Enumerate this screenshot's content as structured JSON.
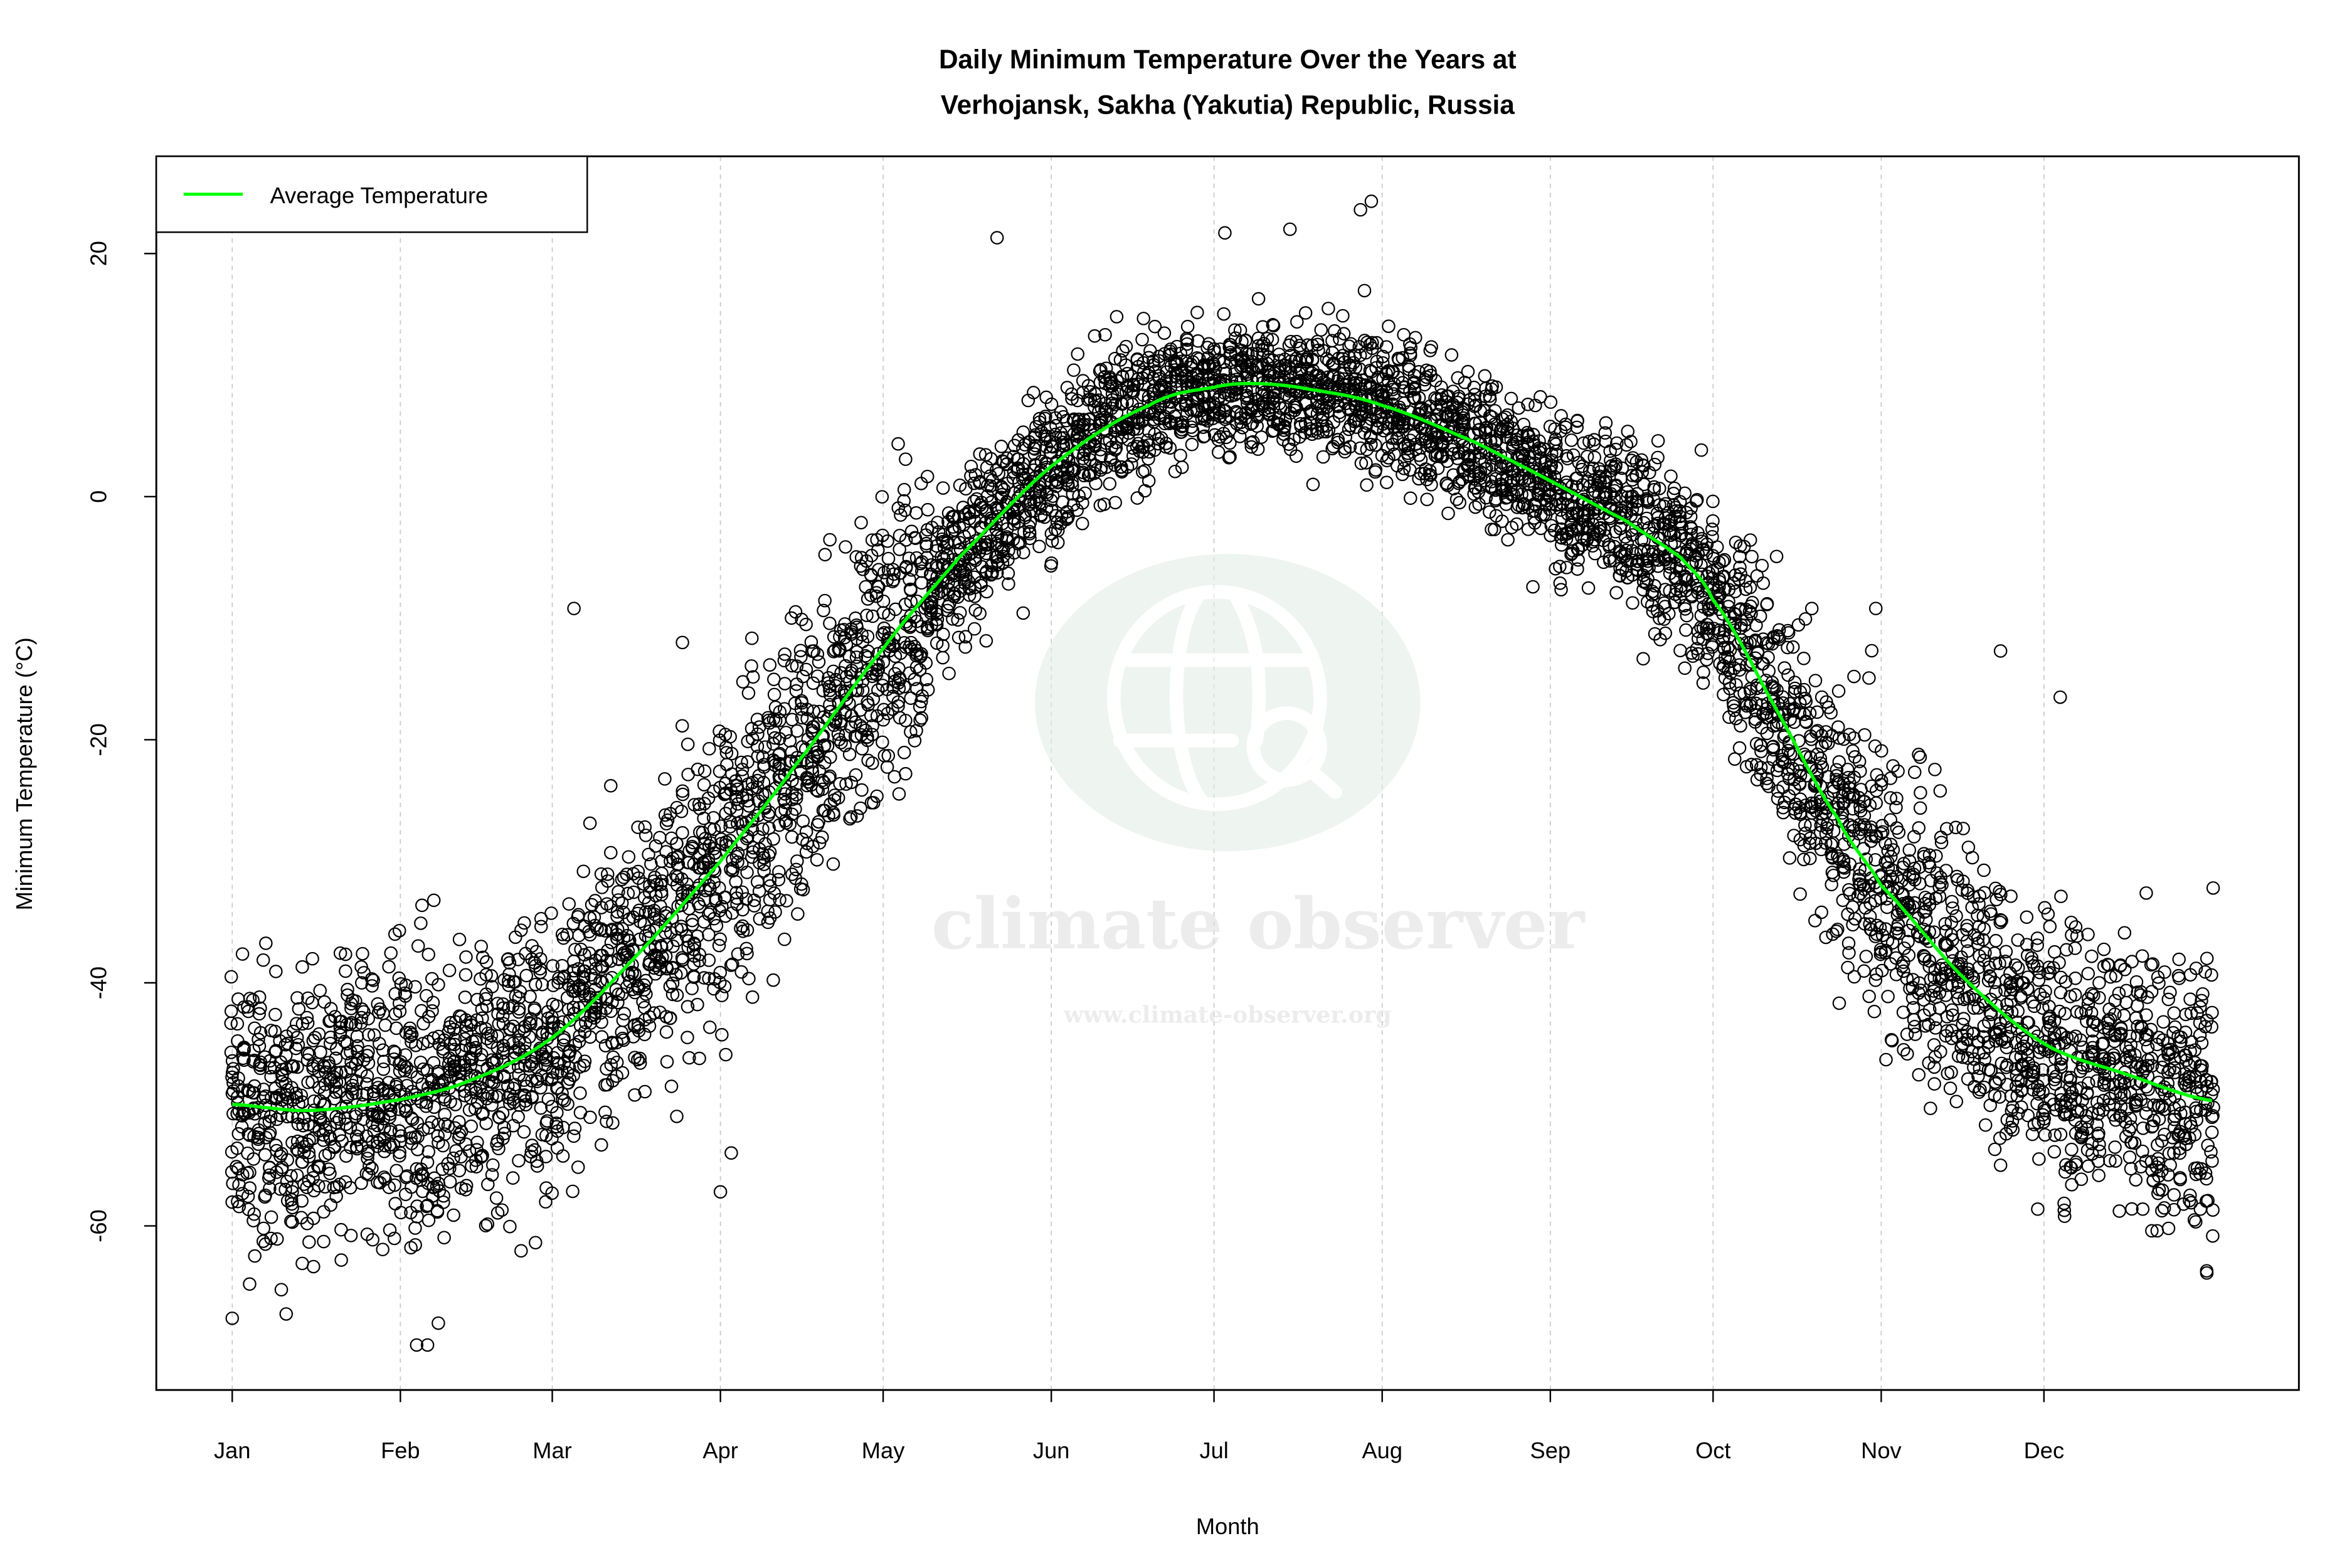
{
  "chart_data": {
    "type": "scatter",
    "title": "Daily Minimum Temperature Over the Years at\nVerhojansk, Sakha (Yakutia) Republic, Russia",
    "title_lines": [
      "Daily Minimum Temperature Over the Years at",
      "Verhojansk, Sakha (Yakutia) Republic, Russia"
    ],
    "xlabel": "Month",
    "ylabel": "Minimum Temperature (°C)",
    "x_unit": "day of year",
    "xlim": [
      -13,
      382
    ],
    "ylim": [
      -73.5,
      28
    ],
    "x_ticks": [
      {
        "day": 1,
        "label": "Jan"
      },
      {
        "day": 32,
        "label": "Feb"
      },
      {
        "day": 60,
        "label": "Mar"
      },
      {
        "day": 91,
        "label": "Apr"
      },
      {
        "day": 121,
        "label": "May"
      },
      {
        "day": 152,
        "label": "Jun"
      },
      {
        "day": 182,
        "label": "Jul"
      },
      {
        "day": 213,
        "label": "Aug"
      },
      {
        "day": 244,
        "label": "Sep"
      },
      {
        "day": 274,
        "label": "Oct"
      },
      {
        "day": 305,
        "label": "Nov"
      },
      {
        "day": 335,
        "label": "Dec"
      }
    ],
    "y_ticks": [
      -60,
      -40,
      -20,
      0,
      20
    ],
    "grid": "vertical dotted lines at month ticks",
    "legend": {
      "position": "top-left",
      "entries": [
        {
          "label": "Average Temperature",
          "color": "#00ff00"
        }
      ]
    },
    "series": [
      {
        "name": "Average Temperature",
        "type": "line",
        "color": "#00ff00",
        "points": [
          [
            1,
            -50
          ],
          [
            15,
            -50.5
          ],
          [
            32,
            -49.6
          ],
          [
            45,
            -48
          ],
          [
            60,
            -44.5
          ],
          [
            75,
            -38
          ],
          [
            91,
            -30
          ],
          [
            105,
            -22
          ],
          [
            121,
            -12.5
          ],
          [
            135,
            -5
          ],
          [
            152,
            2.5
          ],
          [
            170,
            7.5
          ],
          [
            182,
            9
          ],
          [
            190,
            9.3
          ],
          [
            200,
            8.8
          ],
          [
            213,
            7.5
          ],
          [
            230,
            4.5
          ],
          [
            244,
            1.3
          ],
          [
            258,
            -2
          ],
          [
            268,
            -5
          ],
          [
            274,
            -8.5
          ],
          [
            285,
            -17
          ],
          [
            297,
            -26.5
          ],
          [
            305,
            -32
          ],
          [
            320,
            -39.5
          ],
          [
            335,
            -45
          ],
          [
            350,
            -47.5
          ],
          [
            366,
            -49.7
          ]
        ]
      },
      {
        "type": "scatter",
        "marker": "open circle",
        "color": "#000000",
        "description_of_spread": "dense daily observations across many years around the average",
        "notable_points": [
          [
            1,
            -67.6
          ],
          [
            35,
            -69.8
          ],
          [
            37,
            -69.8
          ],
          [
            39,
            -68
          ],
          [
            91,
            -57.2
          ],
          [
            93,
            -54
          ],
          [
            64,
            -9.2
          ],
          [
            84,
            -12
          ],
          [
            142,
            21.3
          ],
          [
            184,
            21.7
          ],
          [
            196,
            22
          ],
          [
            209,
            23.6
          ],
          [
            211,
            24.3
          ],
          [
            304,
            -9.2
          ],
          [
            327,
            -12.7
          ],
          [
            338,
            -16.5
          ],
          [
            365,
            -63.7
          ]
        ]
      }
    ]
  },
  "watermark": {
    "brand": "climate observer",
    "url": "www.climate-observer.org"
  }
}
